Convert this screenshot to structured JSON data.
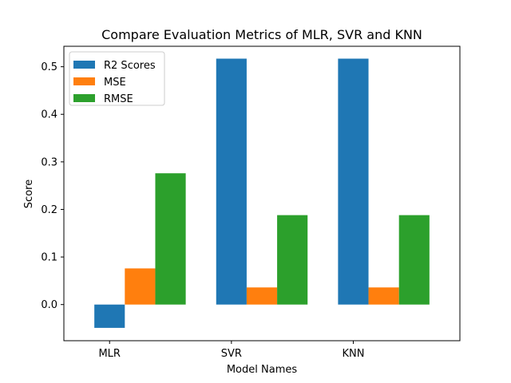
{
  "chart_data": {
    "type": "bar",
    "title": "Compare Evaluation Metrics of MLR, SVR and KNN",
    "xlabel": "Model Names",
    "ylabel": "Score",
    "categories": [
      "MLR",
      "SVR",
      "KNN"
    ],
    "series": [
      {
        "name": "R2 Scores",
        "values": [
          -0.049,
          0.517,
          0.517
        ],
        "color": "#1f77b4"
      },
      {
        "name": "MSE",
        "values": [
          0.076,
          0.036,
          0.036
        ],
        "color": "#ff7f0e"
      },
      {
        "name": "RMSE",
        "values": [
          0.276,
          0.188,
          0.188
        ],
        "color": "#2ca02c"
      }
    ],
    "ylim": [
      -0.076,
      0.543
    ],
    "yticks": [
      0.0,
      0.1,
      0.2,
      0.3,
      0.4,
      0.5
    ],
    "ytick_labels": [
      "0.0",
      "0.1",
      "0.2",
      "0.3",
      "0.4",
      "0.5"
    ],
    "legend_position": "top-left",
    "grid": false
  }
}
